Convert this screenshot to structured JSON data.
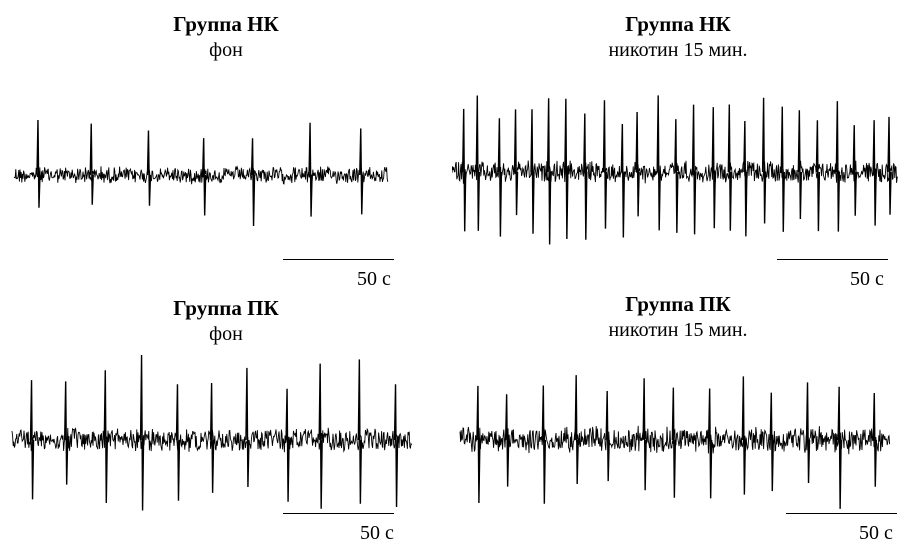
{
  "panels": [
    {
      "title": "Группа НК",
      "subtitle": "фон",
      "scale_label": "50 с",
      "spikes": 7
    },
    {
      "title": "Группа НК",
      "subtitle": "никотин 15 мин.",
      "scale_label": "50 с",
      "spikes": 25
    },
    {
      "title": "Группа ПК",
      "subtitle": "фон",
      "scale_label": "50 с",
      "spikes": 11
    },
    {
      "title": "Группа ПК",
      "subtitle": "никотин 15 мин.",
      "scale_label": "50 с",
      "spikes": 13
    }
  ],
  "trace_color": "#000000"
}
